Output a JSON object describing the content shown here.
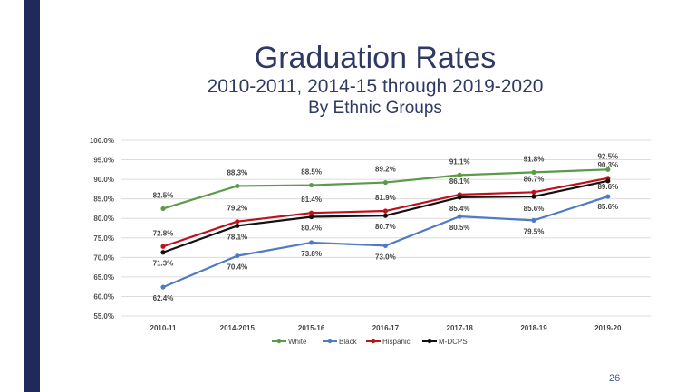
{
  "slide": {
    "page_number": "26"
  },
  "colors": {
    "sidebar": "#1f2a5a",
    "title": "#2e3a64",
    "white_series": "#5a9a48",
    "black_series": "#4f7bc6",
    "hispanic_series": "#c0101c",
    "mdcps_series": "#111111",
    "grid": "#dcdcdc"
  },
  "chart_data": {
    "type": "line",
    "title": "Graduation Rates",
    "subtitle": "2010-2011, 2014-15 through 2019-2020",
    "subtitle2": "By Ethnic Groups",
    "categories": [
      "2010-11",
      "2014-2015",
      "2015-16",
      "2016-17",
      "2017-18",
      "2018-19",
      "2019-20"
    ],
    "ylim": [
      55,
      100
    ],
    "yticks": [
      "55.0%",
      "60.0%",
      "65.0%",
      "70.0%",
      "75.0%",
      "80.0%",
      "85.0%",
      "90.0%",
      "95.0%",
      "100.0%"
    ],
    "grid": true,
    "legend_position": "bottom",
    "series": [
      {
        "name": "White",
        "values": [
          82.5,
          88.3,
          88.5,
          89.2,
          91.1,
          91.8,
          92.5
        ],
        "labels": [
          "82.5%",
          "88.3%",
          "88.5%",
          "89.2%",
          "91.1%",
          "91.8%",
          "92.5%"
        ]
      },
      {
        "name": "Black",
        "values": [
          62.4,
          70.4,
          73.8,
          73.0,
          80.5,
          79.5,
          85.6
        ],
        "labels": [
          "62.4%",
          "70.4%",
          "73.8%",
          "73.0%",
          "80.5%",
          "79.5%",
          "85.6%"
        ]
      },
      {
        "name": "Hispanic",
        "values": [
          72.8,
          79.2,
          81.4,
          81.9,
          86.1,
          86.7,
          90.3
        ],
        "labels": [
          "72.8%",
          "79.2%",
          "81.4%",
          "81.9%",
          "86.1%",
          "86.7%",
          "90.3%"
        ]
      },
      {
        "name": "M-DCPS",
        "values": [
          71.3,
          78.1,
          80.4,
          80.7,
          85.4,
          85.6,
          89.6
        ],
        "labels": [
          "71.3%",
          "78.1%",
          "80.4%",
          "80.7%",
          "85.4%",
          "85.6%",
          "89.6%"
        ]
      }
    ]
  }
}
